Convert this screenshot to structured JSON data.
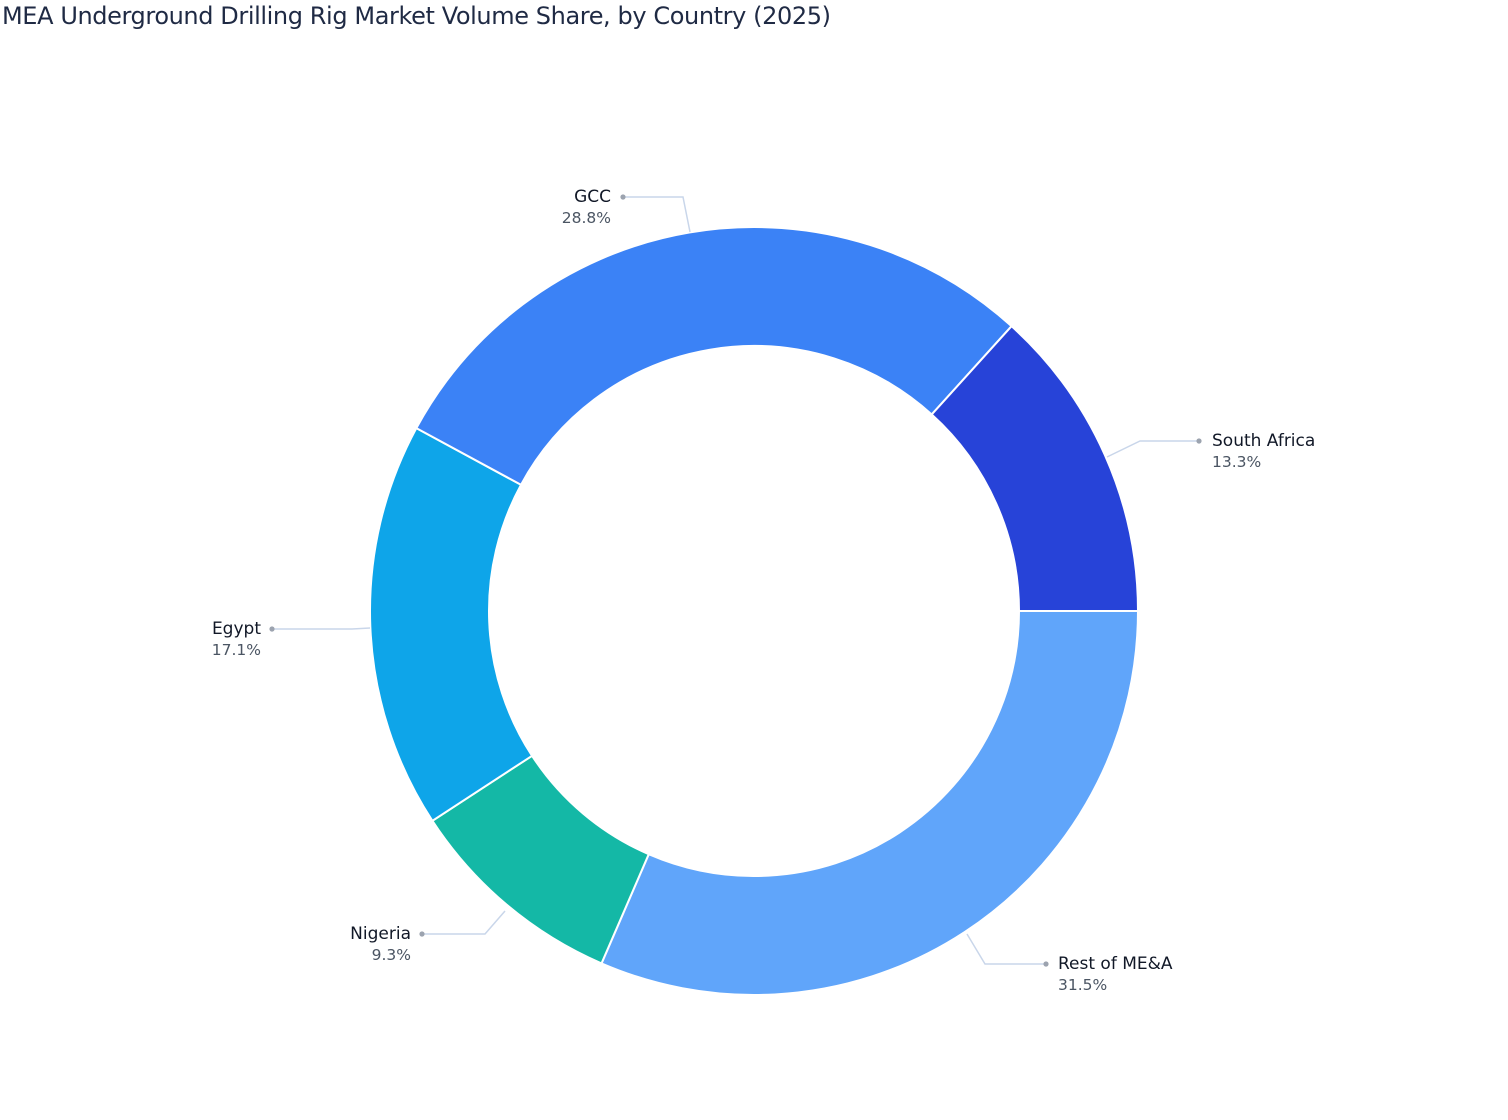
{
  "title": "MEA Underground Drilling Rig Market Volume Share, by Country (2025)",
  "chart_data": {
    "type": "pie",
    "subtype": "donut",
    "title": "MEA Underground Drilling Rig Market Volume Share, by Country (2025)",
    "unit": "%",
    "categories": [
      "Rest of ME&A",
      "Nigeria",
      "Egypt",
      "GCC",
      "South Africa"
    ],
    "values": [
      31.5,
      9.3,
      17.1,
      28.8,
      13.3
    ],
    "colors": [
      "#60A5FA",
      "#14B8A6",
      "#0EA5E9",
      "#3B82F6",
      "#2743D8"
    ],
    "labels": [
      "31.5%",
      "9.3%",
      "17.1%",
      "28.8%",
      "13.3%"
    ],
    "start_angle_deg": 0,
    "direction": "clockwise",
    "hole": 0.69,
    "legend": "none (outside labels with leader lines)"
  },
  "labels": {
    "gcc": {
      "name": "GCC",
      "pct": "28.8%"
    },
    "south_africa": {
      "name": "South Africa",
      "pct": "13.3%"
    },
    "egypt": {
      "name": "Egypt",
      "pct": "17.1%"
    },
    "nigeria": {
      "name": "Nigeria",
      "pct": "9.3%"
    },
    "rest": {
      "name": "Rest of ME&A",
      "pct": "31.5%"
    }
  }
}
